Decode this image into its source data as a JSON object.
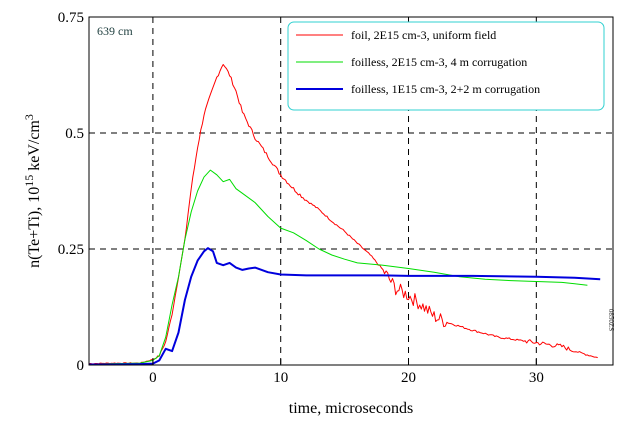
{
  "chart_data": {
    "type": "line",
    "xlabel": "time, microseconds",
    "ylabel_main": "n(Te+Ti), 10",
    "ylabel_exp": "15",
    "ylabel_unit": " keV/cm",
    "ylabel_unit_exp": "3",
    "xlim": [
      -5,
      36
    ],
    "ylim": [
      0,
      0.75
    ],
    "x_ticks": [
      0,
      10,
      20,
      30
    ],
    "x_tick_labels": [
      "0",
      "10",
      "20",
      "30"
    ],
    "y_ticks": [
      0,
      0.25,
      0.5,
      0.75
    ],
    "y_tick_labels": [
      "0",
      "0.25",
      "0.5",
      "0.75"
    ],
    "grid": "dashed",
    "legend_position": "top-right",
    "annotation": "639 cm",
    "side_note": "0850ZS",
    "series": [
      {
        "name": "foil, 2E15 cm-3, uniform field",
        "color": "#ff0000",
        "width": 1,
        "noisy": true,
        "points": [
          [
            -5,
            0.003
          ],
          [
            -3,
            0.004
          ],
          [
            -1,
            0.004
          ],
          [
            0,
            0.012
          ],
          [
            0.5,
            0.02
          ],
          [
            1,
            0.05
          ],
          [
            1.5,
            0.11
          ],
          [
            2,
            0.19
          ],
          [
            2.5,
            0.27
          ],
          [
            3,
            0.38
          ],
          [
            3.5,
            0.47
          ],
          [
            4,
            0.54
          ],
          [
            4.5,
            0.58
          ],
          [
            5,
            0.62
          ],
          [
            5.5,
            0.65
          ],
          [
            6,
            0.625
          ],
          [
            6.5,
            0.59
          ],
          [
            7,
            0.545
          ],
          [
            8,
            0.49
          ],
          [
            9,
            0.45
          ],
          [
            10,
            0.41
          ],
          [
            11,
            0.38
          ],
          [
            12,
            0.355
          ],
          [
            13,
            0.335
          ],
          [
            14,
            0.31
          ],
          [
            15,
            0.288
          ],
          [
            16,
            0.262
          ],
          [
            17,
            0.237
          ],
          [
            18,
            0.205
          ],
          [
            19,
            0.165
          ],
          [
            20,
            0.15
          ],
          [
            21,
            0.13
          ],
          [
            22,
            0.105
          ],
          [
            23,
            0.092
          ],
          [
            25,
            0.075
          ],
          [
            27,
            0.06
          ],
          [
            30,
            0.048
          ],
          [
            32,
            0.04
          ],
          [
            33,
            0.03
          ],
          [
            34,
            0.022
          ],
          [
            34.8,
            0.016
          ]
        ]
      },
      {
        "name": "foilless, 2E15 cm-3, 4 m corrugation",
        "color": "#00dd00",
        "width": 1,
        "noisy": false,
        "points": [
          [
            -5,
            0.002
          ],
          [
            -3,
            0.003
          ],
          [
            -1,
            0.004
          ],
          [
            0,
            0.01
          ],
          [
            0.5,
            0.02
          ],
          [
            1,
            0.06
          ],
          [
            1.5,
            0.13
          ],
          [
            2,
            0.19
          ],
          [
            2.5,
            0.27
          ],
          [
            3,
            0.33
          ],
          [
            3.5,
            0.375
          ],
          [
            4,
            0.405
          ],
          [
            4.5,
            0.42
          ],
          [
            5,
            0.41
          ],
          [
            5.5,
            0.395
          ],
          [
            6,
            0.4
          ],
          [
            6.5,
            0.38
          ],
          [
            7,
            0.37
          ],
          [
            8,
            0.35
          ],
          [
            9,
            0.32
          ],
          [
            10,
            0.295
          ],
          [
            11,
            0.285
          ],
          [
            12,
            0.268
          ],
          [
            13,
            0.25
          ],
          [
            14,
            0.237
          ],
          [
            15,
            0.228
          ],
          [
            16,
            0.22
          ],
          [
            18,
            0.215
          ],
          [
            20,
            0.208
          ],
          [
            22,
            0.2
          ],
          [
            24,
            0.19
          ],
          [
            26,
            0.185
          ],
          [
            28,
            0.182
          ],
          [
            30,
            0.18
          ],
          [
            32,
            0.178
          ],
          [
            33,
            0.175
          ],
          [
            34,
            0.172
          ]
        ]
      },
      {
        "name": "foilless, 1E15 cm-3, 2+2 m corrugation",
        "color": "#0000dd",
        "width": 2,
        "noisy": false,
        "points": [
          [
            -5,
            0.001
          ],
          [
            -3,
            0.001
          ],
          [
            -1,
            0.002
          ],
          [
            0,
            0.003
          ],
          [
            0.5,
            0.01
          ],
          [
            1,
            0.035
          ],
          [
            1.5,
            0.03
          ],
          [
            2,
            0.07
          ],
          [
            2.5,
            0.14
          ],
          [
            3,
            0.19
          ],
          [
            3.5,
            0.225
          ],
          [
            4,
            0.245
          ],
          [
            4.3,
            0.252
          ],
          [
            4.7,
            0.245
          ],
          [
            5,
            0.22
          ],
          [
            5.5,
            0.215
          ],
          [
            6,
            0.22
          ],
          [
            6.5,
            0.21
          ],
          [
            7,
            0.205
          ],
          [
            7.5,
            0.208
          ],
          [
            8,
            0.21
          ],
          [
            9,
            0.2
          ],
          [
            10,
            0.195
          ],
          [
            12,
            0.193
          ],
          [
            15,
            0.193
          ],
          [
            18,
            0.193
          ],
          [
            20,
            0.192
          ],
          [
            25,
            0.192
          ],
          [
            30,
            0.19
          ],
          [
            33,
            0.188
          ],
          [
            35,
            0.185
          ]
        ]
      }
    ]
  }
}
